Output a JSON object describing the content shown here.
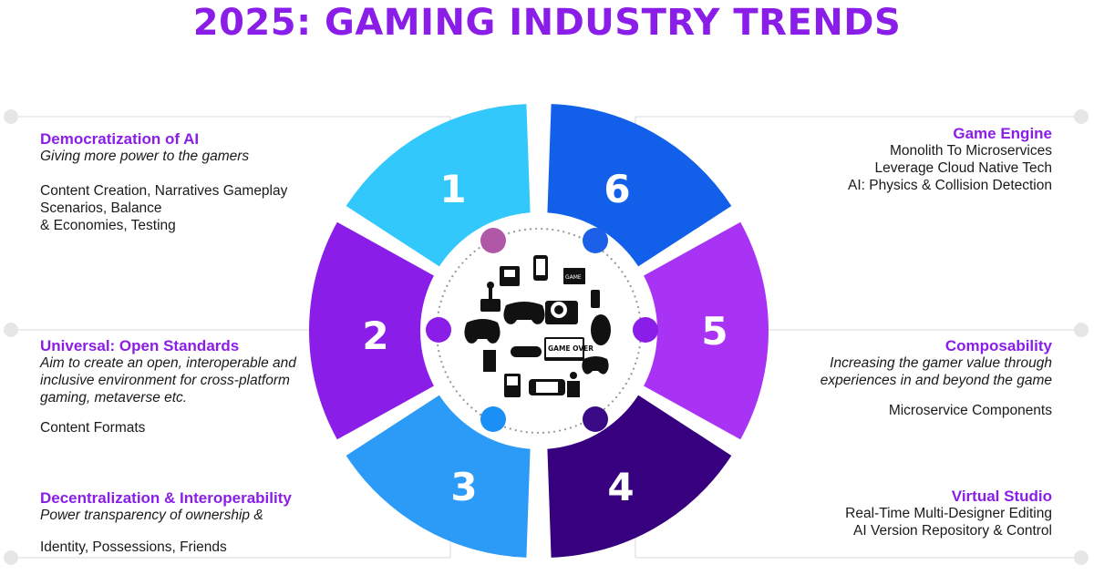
{
  "title": "2025:  GAMING INDUSTRY TRENDS",
  "colors": {
    "title": "#8a1ee8",
    "heading": "#8a1ee8",
    "seg1": "#33c8fb",
    "seg2": "#8a1ee8",
    "seg3": "#2b9bf7",
    "seg4": "#37007f",
    "seg5": "#a933f5",
    "seg6": "#1260ea",
    "dot_pink": "#b157a8",
    "dot_blue": "#1c5fe8",
    "dot_purple": "#8a1ee8",
    "dot_cyan": "#1a8ff5",
    "dot_navy": "#3a0a86"
  },
  "segments": [
    {
      "number": "1"
    },
    {
      "number": "2"
    },
    {
      "number": "3"
    },
    {
      "number": "4"
    },
    {
      "number": "5"
    },
    {
      "number": "6"
    }
  ],
  "center_icon": "gaming-devices-collage-icon",
  "center_text": "GAME OVER",
  "center_small_text": "GAME",
  "trends": {
    "t1": {
      "heading": "Democratization of AI",
      "subtitle": "Giving more power to the gamers",
      "lines": [
        "Content Creation, Narratives Gameplay",
        "Scenarios, Balance",
        "& Economies, Testing"
      ]
    },
    "t2": {
      "heading": "Universal: Open Standards",
      "subtitle_lines": [
        "Aim to create an open, interoperable and",
        "inclusive environment for cross-platform",
        "gaming, metaverse etc."
      ],
      "lines": [
        "Content Formats"
      ]
    },
    "t3": {
      "heading": "Decentralization & Interoperability",
      "subtitle": "Power transparency of ownership &",
      "lines": [
        "Identity, Possessions, Friends"
      ]
    },
    "t4": {
      "heading": "Virtual Studio",
      "lines": [
        "Real-Time Multi-Designer Editing",
        "AI Version Repository & Control"
      ]
    },
    "t5": {
      "heading": "Composability",
      "subtitle_lines": [
        "Increasing the gamer value through",
        "experiences in and beyond the game"
      ],
      "lines": [
        "Microservice Components"
      ]
    },
    "t6": {
      "heading": "Game Engine",
      "lines": [
        "Monolith To Microservices",
        "Leverage Cloud Native Tech",
        "AI: Physics & Collision Detection"
      ]
    }
  }
}
